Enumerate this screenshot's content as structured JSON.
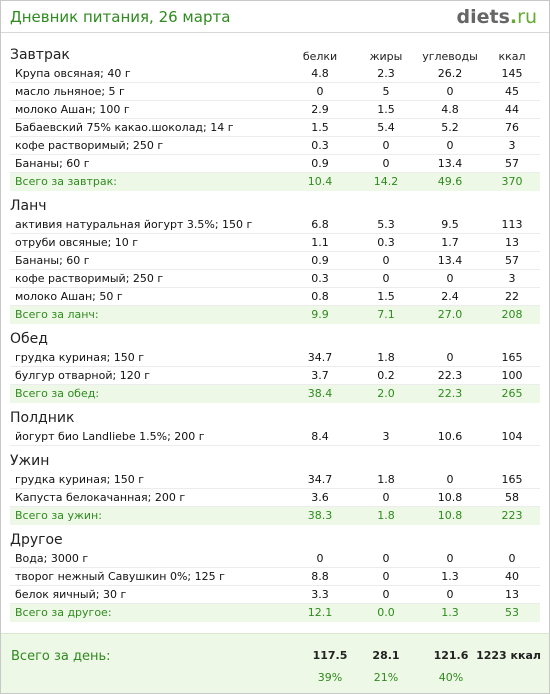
{
  "header": {
    "title": "Дневник питания, 26 марта",
    "logo_main": "diets",
    "logo_dot": ".",
    "logo_tld": "ru"
  },
  "columns": {
    "protein": "белки",
    "fat": "жиры",
    "carbs": "углеводы",
    "kcal": "ккал"
  },
  "sections": [
    {
      "title": "Завтрак",
      "items": [
        {
          "name": "Крупа овсяная; 40 г",
          "p": "4.8",
          "f": "2.3",
          "c": "26.2",
          "k": "145"
        },
        {
          "name": "масло льняное; 5 г",
          "p": "0",
          "f": "5",
          "c": "0",
          "k": "45"
        },
        {
          "name": "молоко Ашан; 100 г",
          "p": "2.9",
          "f": "1.5",
          "c": "4.8",
          "k": "44"
        },
        {
          "name": "Бабаевский 75% какао.шоколад; 14 г",
          "p": "1.5",
          "f": "5.4",
          "c": "5.2",
          "k": "76"
        },
        {
          "name": "кофе растворимый; 250 г",
          "p": "0.3",
          "f": "0",
          "c": "0",
          "k": "3"
        },
        {
          "name": "Бананы; 60 г",
          "p": "0.9",
          "f": "0",
          "c": "13.4",
          "k": "57"
        }
      ],
      "total": {
        "name": "Всего за завтрак:",
        "p": "10.4",
        "f": "14.2",
        "c": "49.6",
        "k": "370"
      }
    },
    {
      "title": "Ланч",
      "items": [
        {
          "name": "активия натуральная йогурт 3.5%; 150 г",
          "p": "6.8",
          "f": "5.3",
          "c": "9.5",
          "k": "113"
        },
        {
          "name": "отруби овсяные; 10 г",
          "p": "1.1",
          "f": "0.3",
          "c": "1.7",
          "k": "13"
        },
        {
          "name": "Бананы; 60 г",
          "p": "0.9",
          "f": "0",
          "c": "13.4",
          "k": "57"
        },
        {
          "name": "кофе растворимый; 250 г",
          "p": "0.3",
          "f": "0",
          "c": "0",
          "k": "3"
        },
        {
          "name": "молоко Ашан; 50 г",
          "p": "0.8",
          "f": "1.5",
          "c": "2.4",
          "k": "22"
        }
      ],
      "total": {
        "name": "Всего за ланч:",
        "p": "9.9",
        "f": "7.1",
        "c": "27.0",
        "k": "208"
      }
    },
    {
      "title": "Обед",
      "items": [
        {
          "name": "грудка куриная; 150 г",
          "p": "34.7",
          "f": "1.8",
          "c": "0",
          "k": "165"
        },
        {
          "name": "булгур отварной; 120 г",
          "p": "3.7",
          "f": "0.2",
          "c": "22.3",
          "k": "100"
        }
      ],
      "total": {
        "name": "Всего за обед:",
        "p": "38.4",
        "f": "2.0",
        "c": "22.3",
        "k": "265"
      }
    },
    {
      "title": "Полдник",
      "items": [
        {
          "name": "йогурт био Landliebe 1.5%; 200 г",
          "p": "8.4",
          "f": "3",
          "c": "10.6",
          "k": "104"
        }
      ],
      "total": null
    },
    {
      "title": "Ужин",
      "items": [
        {
          "name": "грудка куриная; 150 г",
          "p": "34.7",
          "f": "1.8",
          "c": "0",
          "k": "165"
        },
        {
          "name": "Капуста белокачанная; 200 г",
          "p": "3.6",
          "f": "0",
          "c": "10.8",
          "k": "58"
        }
      ],
      "total": {
        "name": "Всего за ужин:",
        "p": "38.3",
        "f": "1.8",
        "c": "10.8",
        "k": "223"
      }
    },
    {
      "title": "Другое",
      "items": [
        {
          "name": "Вода; 3000 г",
          "p": "0",
          "f": "0",
          "c": "0",
          "k": "0"
        },
        {
          "name": "творог нежный Савушкин 0%; 125 г",
          "p": "8.8",
          "f": "0",
          "c": "1.3",
          "k": "40"
        },
        {
          "name": "белок яичный; 30 г",
          "p": "3.3",
          "f": "0",
          "c": "0",
          "k": "13"
        }
      ],
      "total": {
        "name": "Всего за другое:",
        "p": "12.1",
        "f": "0.0",
        "c": "1.3",
        "k": "53"
      }
    }
  ],
  "day_total": {
    "label": "Всего за день:",
    "p": "117.5",
    "f": "28.1",
    "c": "121.6",
    "k": "1223 ккал",
    "pp": "39%",
    "pf": "21%",
    "pc": "40%"
  },
  "colors": {
    "accent": "#2f8a1f",
    "total_bg": "#eef8e6"
  }
}
